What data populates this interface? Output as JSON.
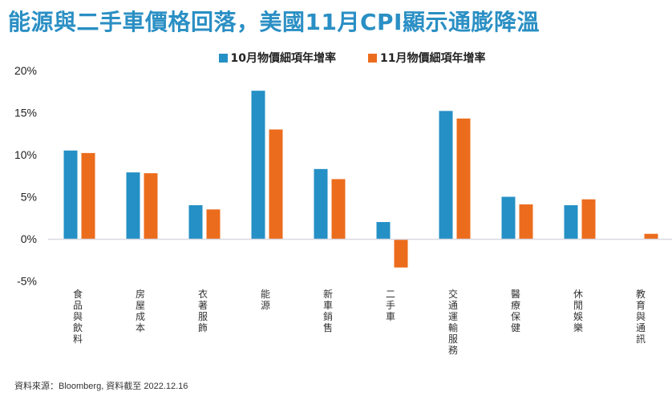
{
  "title": "能源與二手車價格回落，美國11月CPI顯示通膨降溫",
  "source": "資料來源：Bloomberg, 資料截至 2022.12.16",
  "colors": {
    "title": "#2a8fc4",
    "oct": "#2490c5",
    "nov": "#ec6c1d",
    "axis": "#d9d9e3"
  },
  "chart_data": {
    "type": "bar",
    "title": "能源與二手車價格回落，美國11月CPI顯示通膨降溫",
    "xlabel": "",
    "ylabel": "",
    "ylim": [
      -5,
      20
    ],
    "yticks": [
      20,
      15,
      10,
      5,
      0,
      -5
    ],
    "ytick_labels": [
      "20%",
      "15%",
      "10%",
      "5%",
      "0%",
      "-5%"
    ],
    "grid": false,
    "legend_position": "top-center",
    "categories": [
      "食品與飲料",
      "房屋成本",
      "衣著服飾",
      "能源",
      "新車銷售",
      "二手車",
      "交通運輸服務",
      "醫療保健",
      "休閒娛樂",
      "教育與通訊"
    ],
    "series": [
      {
        "name": "10月物價細項年增率",
        "color": "#2490c5",
        "values": [
          10.5,
          7.9,
          4.0,
          17.6,
          8.3,
          2.0,
          15.2,
          5.0,
          4.0,
          null
        ]
      },
      {
        "name": "11月物價細項年增率",
        "color": "#ec6c1d",
        "values": [
          10.2,
          7.8,
          3.5,
          13.0,
          7.1,
          -3.4,
          14.3,
          4.1,
          4.7,
          0.6
        ]
      }
    ]
  }
}
